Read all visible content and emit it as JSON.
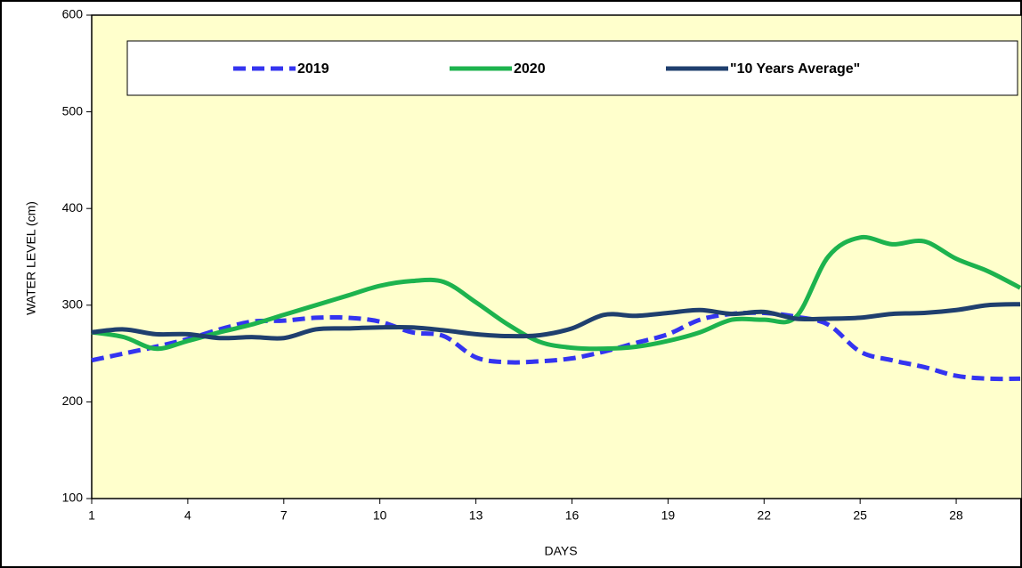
{
  "chart_data": {
    "type": "line",
    "x_label": "DAYS",
    "y_label": "WATER LEVEL (cm)",
    "x": [
      1,
      2,
      3,
      4,
      5,
      6,
      7,
      8,
      9,
      10,
      11,
      12,
      13,
      14,
      15,
      16,
      17,
      18,
      19,
      20,
      21,
      22,
      23,
      24,
      25,
      26,
      27,
      28,
      29,
      30
    ],
    "xlim": [
      1,
      30
    ],
    "xticks": [
      1,
      4,
      7,
      10,
      13,
      16,
      19,
      22,
      25,
      28
    ],
    "ylim": [
      100,
      600
    ],
    "yticks": [
      100,
      200,
      300,
      400,
      500,
      600
    ],
    "series": [
      {
        "name": "2019",
        "color": "#3434f0",
        "dashed": true,
        "values": [
          243,
          250,
          257,
          265,
          275,
          283,
          284,
          287,
          287,
          283,
          272,
          268,
          246,
          241,
          242,
          245,
          252,
          261,
          270,
          285,
          291,
          292,
          288,
          280,
          252,
          243,
          236,
          227,
          224,
          224
        ]
      },
      {
        "name": "2020",
        "color": "#1db34e",
        "dashed": false,
        "values": [
          272,
          267,
          255,
          263,
          272,
          280,
          290,
          300,
          310,
          320,
          325,
          324,
          303,
          280,
          262,
          256,
          255,
          257,
          263,
          272,
          285,
          285,
          288,
          350,
          370,
          363,
          366,
          348,
          335,
          318
        ]
      },
      {
        "name": "\"10 Years Average\"",
        "color": "#1f3f6e",
        "dashed": false,
        "values": [
          272,
          275,
          270,
          270,
          266,
          267,
          266,
          275,
          276,
          277,
          277,
          274,
          270,
          268,
          269,
          276,
          290,
          289,
          292,
          295,
          291,
          293,
          286,
          286,
          287,
          291,
          292,
          295,
          300,
          301
        ]
      }
    ]
  }
}
